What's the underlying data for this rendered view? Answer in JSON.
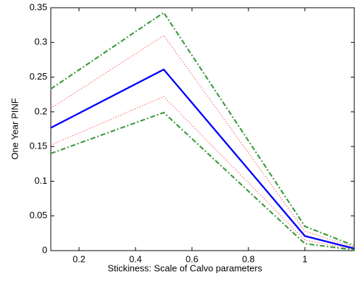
{
  "chart_data": {
    "type": "line",
    "x_label": "Stickiness: Scale of Calvo parameters",
    "y_label": "One Year PINF",
    "x": [
      0.1,
      0.5,
      1,
      1.175
    ],
    "series": [
      {
        "color": "#3c9b3c",
        "dash": "7,3,2,3",
        "width": 2.2,
        "values": [
          0.233,
          0.343,
          0.035,
          0.007
        ]
      },
      {
        "color": "#ff3030",
        "dash": "1.2,2.5",
        "width": 1,
        "values": [
          0.205,
          0.31,
          0.028,
          0.005
        ]
      },
      {
        "color": "#0000ff",
        "dash": "",
        "width": 2.4,
        "values": [
          0.177,
          0.261,
          0.021,
          0.003
        ]
      },
      {
        "color": "#ff3030",
        "dash": "1.2,2.5",
        "width": 1,
        "values": [
          0.152,
          0.222,
          0.015,
          0.002
        ]
      },
      {
        "color": "#3c9b3c",
        "dash": "7,3,2,3",
        "width": 2.2,
        "values": [
          0.14,
          0.199,
          0.01,
          0.001
        ]
      }
    ],
    "xlim": [
      0.1,
      1.175
    ],
    "xticks": [
      0.2,
      0.4,
      0.6,
      0.8,
      1
    ],
    "ylim": [
      0,
      0.35
    ],
    "yticks": [
      0,
      0.05,
      0.1,
      0.15,
      0.2,
      0.25,
      0.3,
      0.35
    ]
  }
}
